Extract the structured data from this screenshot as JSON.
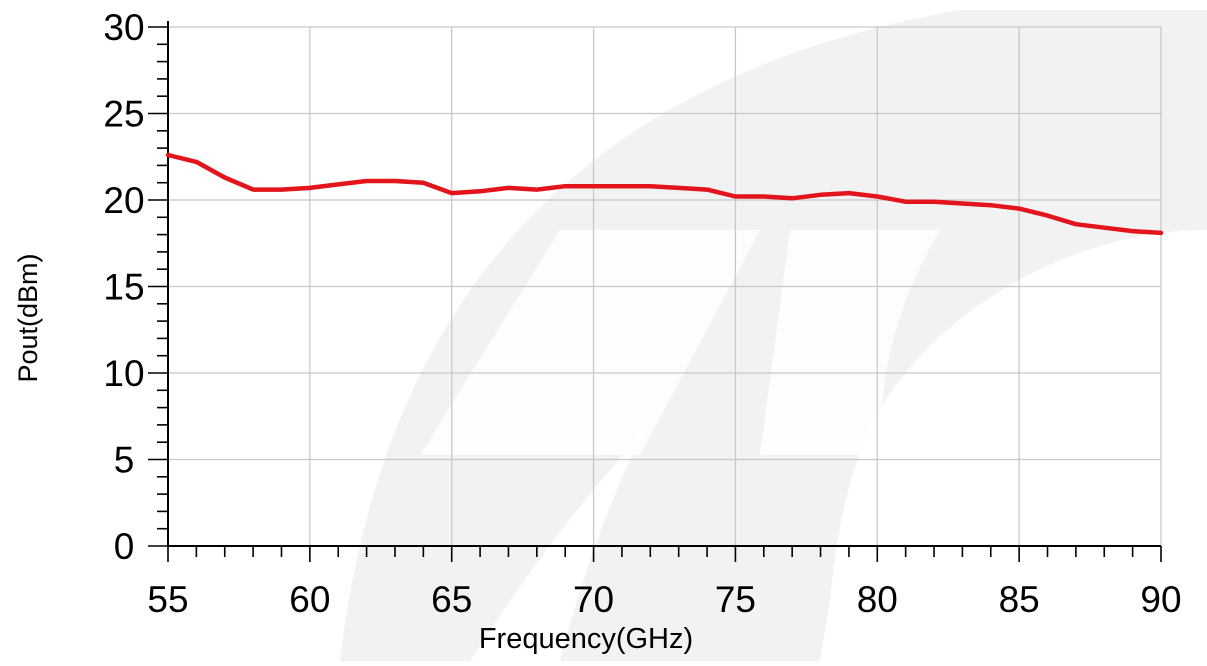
{
  "chart_data": {
    "type": "line",
    "title": "",
    "xlabel": "Frequency(GHz)",
    "ylabel": "Pout(dBm)",
    "xlim": [
      55,
      90
    ],
    "ylim": [
      0,
      30
    ],
    "x_ticks": [
      55,
      60,
      65,
      70,
      75,
      80,
      85,
      90
    ],
    "y_ticks": [
      0,
      5,
      10,
      15,
      20,
      25,
      30
    ],
    "grid": true,
    "legend": "none",
    "series": [
      {
        "color": "#e3141b",
        "x": [
          55,
          56,
          57,
          58,
          59,
          60,
          61,
          62,
          63,
          64,
          65,
          66,
          67,
          68,
          69,
          70,
          71,
          72,
          73,
          74,
          75,
          76,
          77,
          78,
          79,
          80,
          81,
          82,
          83,
          84,
          85,
          86,
          87,
          88,
          89,
          90
        ],
        "y": [
          22.6,
          22.2,
          21.3,
          20.6,
          20.6,
          20.7,
          20.9,
          21.1,
          21.1,
          21.0,
          20.4,
          20.5,
          20.7,
          20.6,
          20.8,
          20.8,
          20.8,
          20.8,
          20.7,
          20.6,
          20.2,
          20.2,
          20.1,
          20.3,
          20.4,
          20.2,
          19.9,
          19.9,
          19.8,
          19.7,
          19.5,
          19.1,
          18.6,
          18.4,
          18.2,
          18.1
        ]
      }
    ]
  },
  "colors": {
    "grid": "#c8c8c8",
    "axis": "#000000",
    "watermark": "#f1f1f1"
  }
}
